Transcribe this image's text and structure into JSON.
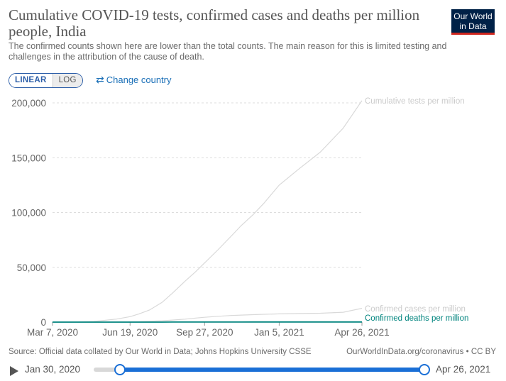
{
  "header": {
    "title": "Cumulative COVID-19 tests, confirmed cases and deaths per million people, India",
    "subtitle": "The confirmed counts shown here are lower than the total counts. The main reason for this is limited testing and challenges in the attribution of the cause of death."
  },
  "logo": {
    "line1": "Our World",
    "line2": "in Data",
    "bg_color": "#002147",
    "accent_color": "#ce261e"
  },
  "controls": {
    "linear_label": "LINEAR",
    "log_label": "LOG",
    "active_scale": "linear",
    "change_country_label": "Change country",
    "change_country_icon": "swap-arrows-icon"
  },
  "footer": {
    "source": "Source: Official data collated by Our World in Data; Johns Hopkins University CSSE",
    "credit": "OurWorldInData.org/coronavirus • CC BY"
  },
  "timeline": {
    "start_label": "Jan 30, 2020",
    "end_label": "Apr 26, 2021",
    "play_icon": "play-icon",
    "accent_color": "#1a6fd6"
  },
  "chart_data": {
    "type": "line",
    "title": "Cumulative COVID-19 tests, confirmed cases and deaths per million people, India",
    "xlabel": "",
    "ylabel": "",
    "x_ticks": [
      "Mar 7, 2020",
      "Jun 19, 2020",
      "Sep 27, 2020",
      "Jan 5, 2021",
      "Apr 26, 2021"
    ],
    "x_range": [
      "Mar 7, 2020",
      "Apr 26, 2021"
    ],
    "y_ticks": [
      "0",
      "50,000",
      "100,000",
      "150,000",
      "200,000"
    ],
    "ylim": [
      0,
      200000
    ],
    "grid": "horizontal dashed",
    "legend": "labels at line ends (right)",
    "x": [
      "Mar 7, 2020",
      "Apr 1, 2020",
      "May 1, 2020",
      "Jun 1, 2020",
      "Jun 19, 2020",
      "Jul 1, 2020",
      "Jul 15, 2020",
      "Aug 1, 2020",
      "Aug 15, 2020",
      "Sep 1, 2020",
      "Sep 15, 2020",
      "Sep 27, 2020",
      "Oct 15, 2020",
      "Nov 1, 2020",
      "Nov 15, 2020",
      "Dec 1, 2020",
      "Dec 15, 2020",
      "Jan 5, 2021",
      "Feb 1, 2021",
      "Mar 1, 2021",
      "Apr 1, 2021",
      "Apr 26, 2021"
    ],
    "series": [
      {
        "name": "Cumulative tests per million",
        "color": "#d9d9d9",
        "values": [
          0,
          20,
          600,
          2800,
          5000,
          7500,
          11000,
          18000,
          26500,
          37500,
          46000,
          54000,
          66000,
          78000,
          88000,
          98000,
          108000,
          125000,
          140000,
          155000,
          177000,
          202000
        ]
      },
      {
        "name": "Confirmed cases per million",
        "color": "#d9d9d9",
        "values": [
          0,
          1,
          30,
          140,
          280,
          430,
          680,
          1240,
          1850,
          2750,
          3700,
          4400,
          5300,
          6000,
          6400,
          6800,
          7100,
          7500,
          7800,
          8100,
          9000,
          12600
        ]
      },
      {
        "name": "Confirmed deaths per million",
        "color": "#00847e",
        "values": [
          0,
          0,
          1,
          4,
          9,
          13,
          18,
          27,
          37,
          48,
          60,
          70,
          80,
          89,
          94,
          100,
          104,
          108,
          112,
          115,
          120,
          143
        ]
      }
    ]
  }
}
